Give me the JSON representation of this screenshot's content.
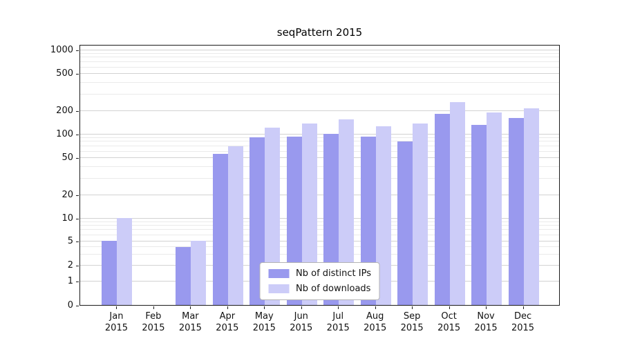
{
  "title": "seqPattern 2015",
  "chart_data": {
    "type": "bar",
    "title": "seqPattern 2015",
    "categories": [
      "Jan",
      "Feb",
      "Mar",
      "Apr",
      "May",
      "Jun",
      "Jul",
      "Aug",
      "Sep",
      "Oct",
      "Nov",
      "Dec"
    ],
    "year_label": "2015",
    "series": [
      {
        "name": "Nb of distinct IPs",
        "color": "#9999ee",
        "values": [
          5,
          0,
          4,
          55,
          90,
          93,
          100,
          92,
          80,
          180,
          130,
          160
        ]
      },
      {
        "name": "Nb of downloads",
        "color": "#ccccf8",
        "values": [
          10,
          0,
          5,
          70,
          120,
          135,
          155,
          125,
          135,
          245,
          190,
          210
        ]
      }
    ],
    "yticks": [
      0,
      1,
      2,
      5,
      10,
      20,
      50,
      100,
      200,
      500,
      1000
    ],
    "minor_yticks": [
      3,
      4,
      6,
      7,
      8,
      9,
      30,
      40,
      60,
      70,
      80,
      90,
      300,
      400,
      600,
      700,
      800,
      900
    ],
    "scale": "symlog",
    "ylim": [
      0,
      1000
    ],
    "grid": true,
    "legend_position": "lower center"
  }
}
